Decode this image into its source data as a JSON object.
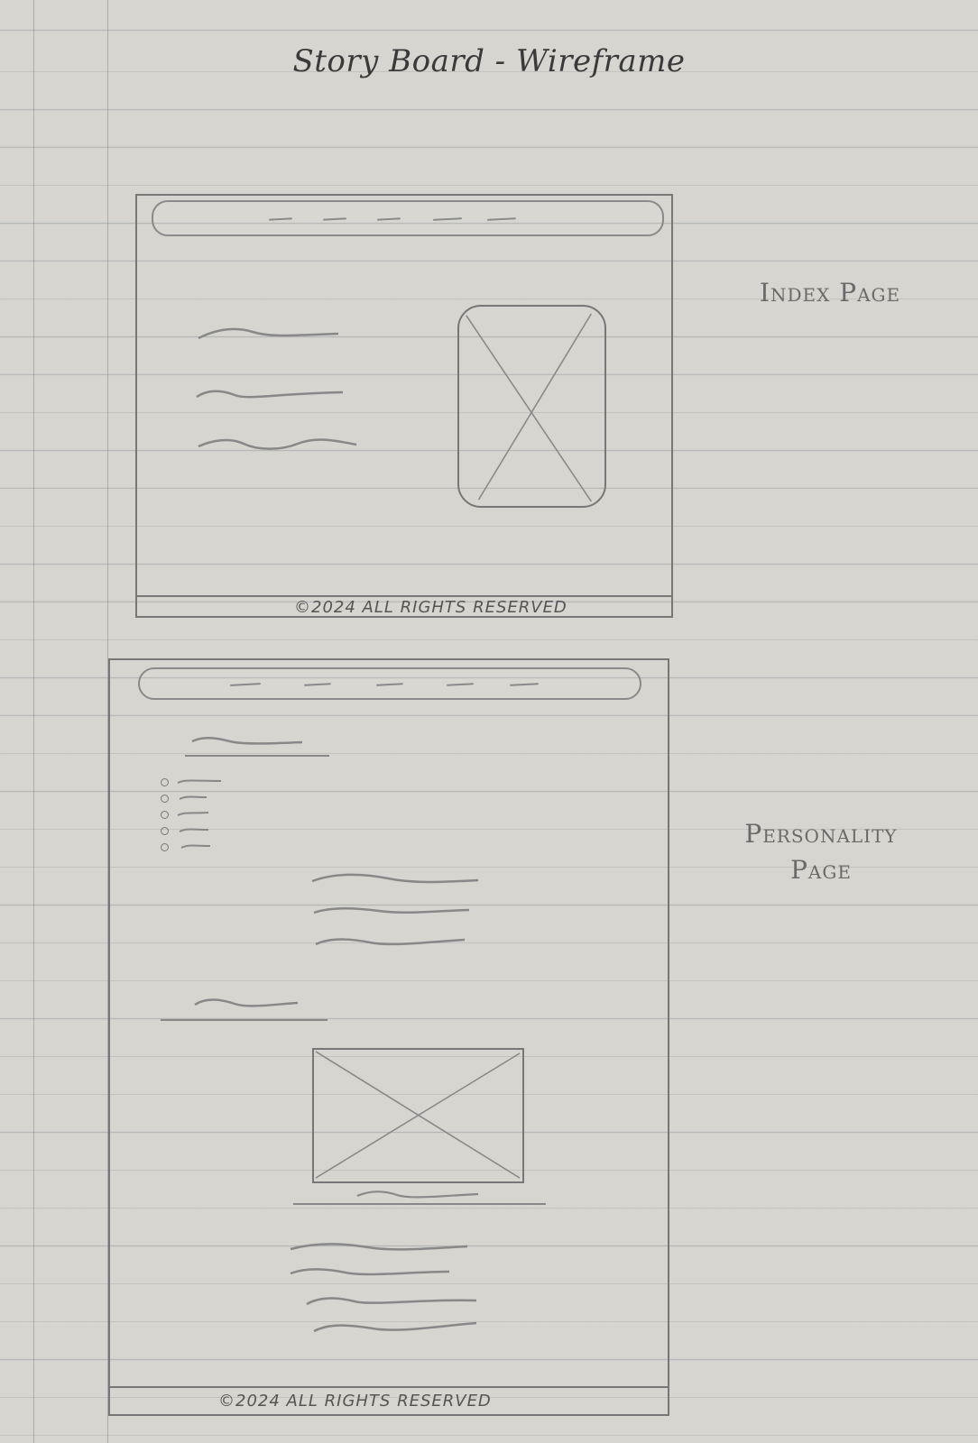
{
  "title": "Story Board - Wireframe",
  "pages": [
    {
      "label": "Index Page",
      "footer": "©2024 All Rights Reserved"
    },
    {
      "label": "Personality Page",
      "footer": "©2024 All Rights Reserved"
    }
  ],
  "colors": {
    "paper": "#d6d5d0",
    "pencil": "#777777",
    "ruled_line": "#6e737d"
  }
}
